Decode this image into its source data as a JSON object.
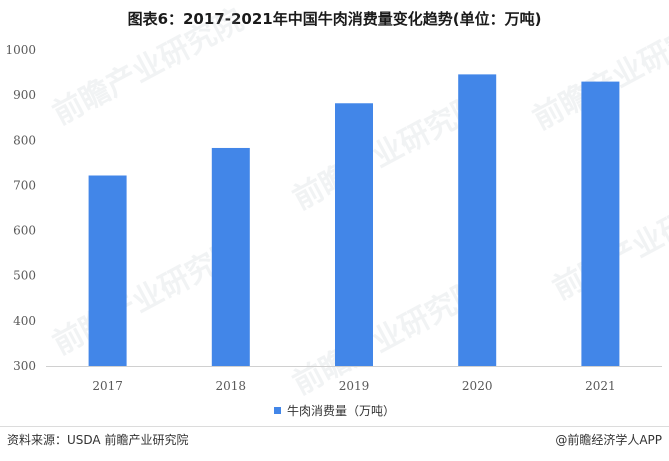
{
  "title": "图表6：2017-2021年中国牛肉消费量变化趋势(单位：万吨)",
  "source": "资料来源：USDA 前瞻产业研究院",
  "credit": "@前瞻经济学人APP",
  "watermark": "前瞻产业研究院",
  "chart_data": {
    "type": "bar",
    "categories": [
      "2017",
      "2018",
      "2019",
      "2020",
      "2021"
    ],
    "series": [
      {
        "name": "牛肉消费量（万吨）",
        "values": [
          722,
          783,
          882,
          946,
          930
        ],
        "color": "#4286e8"
      }
    ],
    "ylim": [
      300,
      1000
    ],
    "yticks": [
      300,
      400,
      500,
      600,
      700,
      800,
      900,
      1000
    ],
    "grid": false,
    "legend": "bottom"
  }
}
